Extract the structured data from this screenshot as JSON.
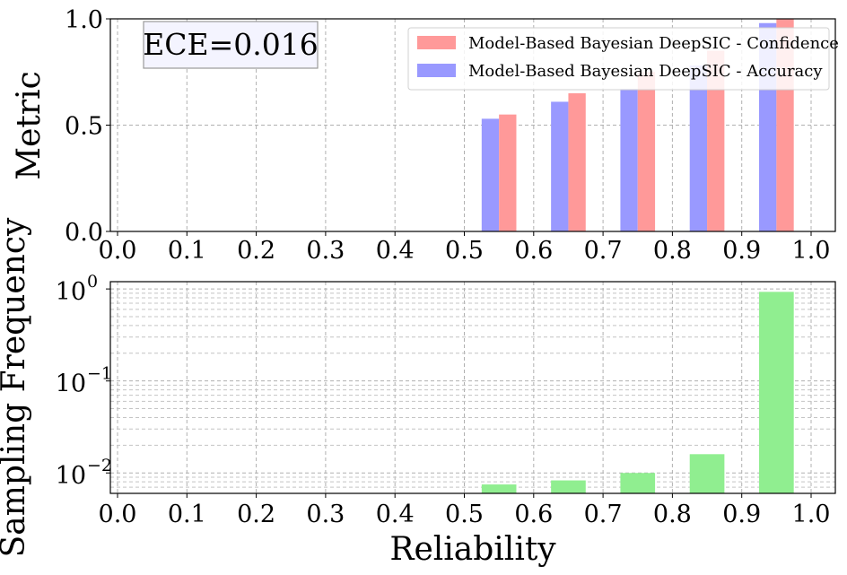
{
  "colors": {
    "confidence": "#ff9999",
    "accuracy": "#9999ff",
    "frequency": "#90ee90",
    "ece_box_fill": "#f4f4ff",
    "ece_box_stroke": "#999999"
  },
  "chart_data": [
    {
      "type": "bar",
      "ylabel": "Metric",
      "xlim": [
        0.0,
        1.0
      ],
      "ylim": [
        0.0,
        1.0
      ],
      "xticks": [
        "0.0",
        "0.1",
        "0.2",
        "0.3",
        "0.4",
        "0.5",
        "0.6",
        "0.7",
        "0.8",
        "0.9",
        "1.0"
      ],
      "yticks": [
        "0.0",
        "0.5",
        "1.0"
      ],
      "grid": true,
      "legend_position": "top-right",
      "annotation": "ECE=0.016",
      "bins": [
        0.55,
        0.65,
        0.75,
        0.85,
        0.95
      ],
      "series": [
        {
          "name": "Model-Based Bayesian DeepSIC - Confidence",
          "color_key": "confidence",
          "values": [
            0.55,
            0.65,
            0.75,
            0.85,
            1.0
          ]
        },
        {
          "name": "Model-Based Bayesian DeepSIC - Accuracy",
          "color_key": "accuracy",
          "values": [
            0.53,
            0.61,
            0.67,
            0.78,
            0.98
          ]
        }
      ]
    },
    {
      "type": "bar",
      "ylabel": "Sampling Frequency",
      "xlabel": "Reliability",
      "yscale": "log",
      "xlim": [
        0.0,
        1.0
      ],
      "ylim": [
        0.006,
        1.2
      ],
      "xticks": [
        "0.0",
        "0.1",
        "0.2",
        "0.3",
        "0.4",
        "0.5",
        "0.6",
        "0.7",
        "0.8",
        "0.9",
        "1.0"
      ],
      "yticks": [
        {
          "base": "10",
          "exp": "0"
        },
        {
          "base": "10",
          "exp": "−1"
        },
        {
          "base": "10",
          "exp": "−2"
        }
      ],
      "grid": true,
      "bins": [
        0.55,
        0.65,
        0.75,
        0.85,
        0.95
      ],
      "series": [
        {
          "color_key": "frequency",
          "values": [
            0.0075,
            0.0083,
            0.01,
            0.016,
            0.93
          ]
        }
      ]
    }
  ]
}
